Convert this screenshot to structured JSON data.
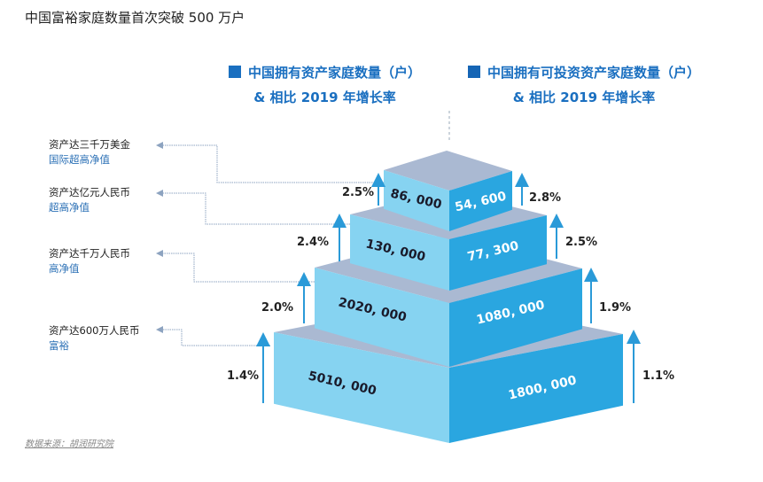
{
  "title": "中国富裕家庭数量首次突破 500 万户",
  "legend": [
    {
      "line1": "中国拥有资产家庭数量（户）",
      "line2": "& 相比 2019 年增长率",
      "color": "#1a6fc0"
    },
    {
      "line1": "中国拥有可投资资产家庭数量（户）",
      "line2": "& 相比 2019 年增长率",
      "color": "#1565b5"
    }
  ],
  "colors": {
    "left_face": "#86d3f1",
    "right_face": "#2aa6e0",
    "top_face": "#aab9d2",
    "arrow": "#2a9ad8"
  },
  "tiers": [
    {
      "label": "资产达三千万美金",
      "category": "国际超高净值",
      "households": "86, 000",
      "investable": "54, 600",
      "growth_households": "2.5%",
      "growth_investable": "2.8%"
    },
    {
      "label": "资产达亿元人民币",
      "category": "超高净值",
      "households": "130, 000",
      "investable": "77, 300",
      "growth_households": "2.4%",
      "growth_investable": "2.5%"
    },
    {
      "label": "资产达千万人民币",
      "category": "高净值",
      "households": "2020, 000",
      "investable": "1080, 000",
      "growth_households": "2.0%",
      "growth_investable": "1.9%"
    },
    {
      "label": "资产达600万人民币",
      "category": "富裕",
      "households": "5010, 000",
      "investable": "1800, 000",
      "growth_households": "1.4%",
      "growth_investable": "1.1%"
    }
  ],
  "source": "数据来源：胡润研究院"
}
